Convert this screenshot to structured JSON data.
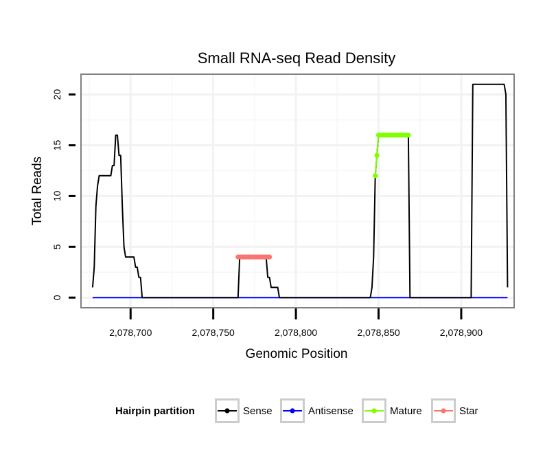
{
  "chart_data": {
    "type": "line",
    "title": "Small RNA-seq Read Density",
    "xlabel": "Genomic Position",
    "ylabel": "Total Reads",
    "xlim": [
      2078670,
      2078932
    ],
    "ylim": [
      -1,
      22
    ],
    "x_ticks": [
      2078700,
      2078750,
      2078800,
      2078850,
      2078900
    ],
    "x_tick_labels": [
      "2,078,700",
      "2,078,750",
      "2,078,800",
      "2,078,850",
      "2,078,900"
    ],
    "y_ticks": [
      0,
      5,
      10,
      15,
      20
    ],
    "y_tick_labels": [
      "0",
      "5",
      "10",
      "15",
      "20"
    ],
    "grid": true,
    "legend": {
      "title": "Hairpin partition",
      "position": "bottom",
      "entries": [
        "Sense",
        "Antisense",
        "Mature",
        "Star"
      ]
    },
    "series": [
      {
        "name": "Sense",
        "color": "#000000",
        "style": "line",
        "x": [
          2078677,
          2078678,
          2078679,
          2078680,
          2078681,
          2078682,
          2078683,
          2078684,
          2078688,
          2078689,
          2078690,
          2078691,
          2078692,
          2078693,
          2078694,
          2078695,
          2078696,
          2078697,
          2078698,
          2078699,
          2078700,
          2078702,
          2078703,
          2078704,
          2078705,
          2078706,
          2078707,
          2078708,
          2078720,
          2078765,
          2078766,
          2078782,
          2078783,
          2078784,
          2078785,
          2078786,
          2078787,
          2078789,
          2078790,
          2078845,
          2078846,
          2078847,
          2078848,
          2078849,
          2078850,
          2078852,
          2078868,
          2078869,
          2078906,
          2078907,
          2078926,
          2078927,
          2078928
        ],
        "values": [
          1,
          3,
          9,
          11,
          12,
          12,
          12,
          12,
          12,
          13,
          13,
          16,
          16,
          14,
          14,
          9,
          5,
          4,
          4,
          4,
          4,
          4,
          3,
          3,
          2,
          2,
          0,
          0,
          0,
          0,
          4,
          4,
          2,
          2,
          1,
          1,
          1,
          1,
          0,
          0,
          1,
          4,
          12,
          14,
          16,
          16,
          16,
          0,
          0,
          21,
          21,
          20,
          1
        ]
      },
      {
        "name": "Antisense",
        "color": "#0000ff",
        "style": "line",
        "x": [
          2078677,
          2078928
        ],
        "values": [
          0,
          0
        ]
      },
      {
        "name": "Mature",
        "color": "#7fff00",
        "style": "points",
        "x": [
          2078848,
          2078849,
          2078850,
          2078851,
          2078852,
          2078853,
          2078854,
          2078855,
          2078856,
          2078857,
          2078858,
          2078859,
          2078860,
          2078861,
          2078862,
          2078863,
          2078864,
          2078865,
          2078866,
          2078867,
          2078868
        ],
        "values": [
          12,
          14,
          16,
          16,
          16,
          16,
          16,
          16,
          16,
          16,
          16,
          16,
          16,
          16,
          16,
          16,
          16,
          16,
          16,
          16,
          16
        ]
      },
      {
        "name": "Star",
        "color": "#f8766d",
        "style": "points",
        "x": [
          2078765,
          2078766,
          2078767,
          2078768,
          2078769,
          2078770,
          2078771,
          2078772,
          2078773,
          2078774,
          2078775,
          2078776,
          2078777,
          2078778,
          2078779,
          2078780,
          2078781,
          2078782,
          2078783,
          2078784
        ],
        "values": [
          4,
          4,
          4,
          4,
          4,
          4,
          4,
          4,
          4,
          4,
          4,
          4,
          4,
          4,
          4,
          4,
          4,
          4,
          4,
          4
        ]
      }
    ]
  }
}
